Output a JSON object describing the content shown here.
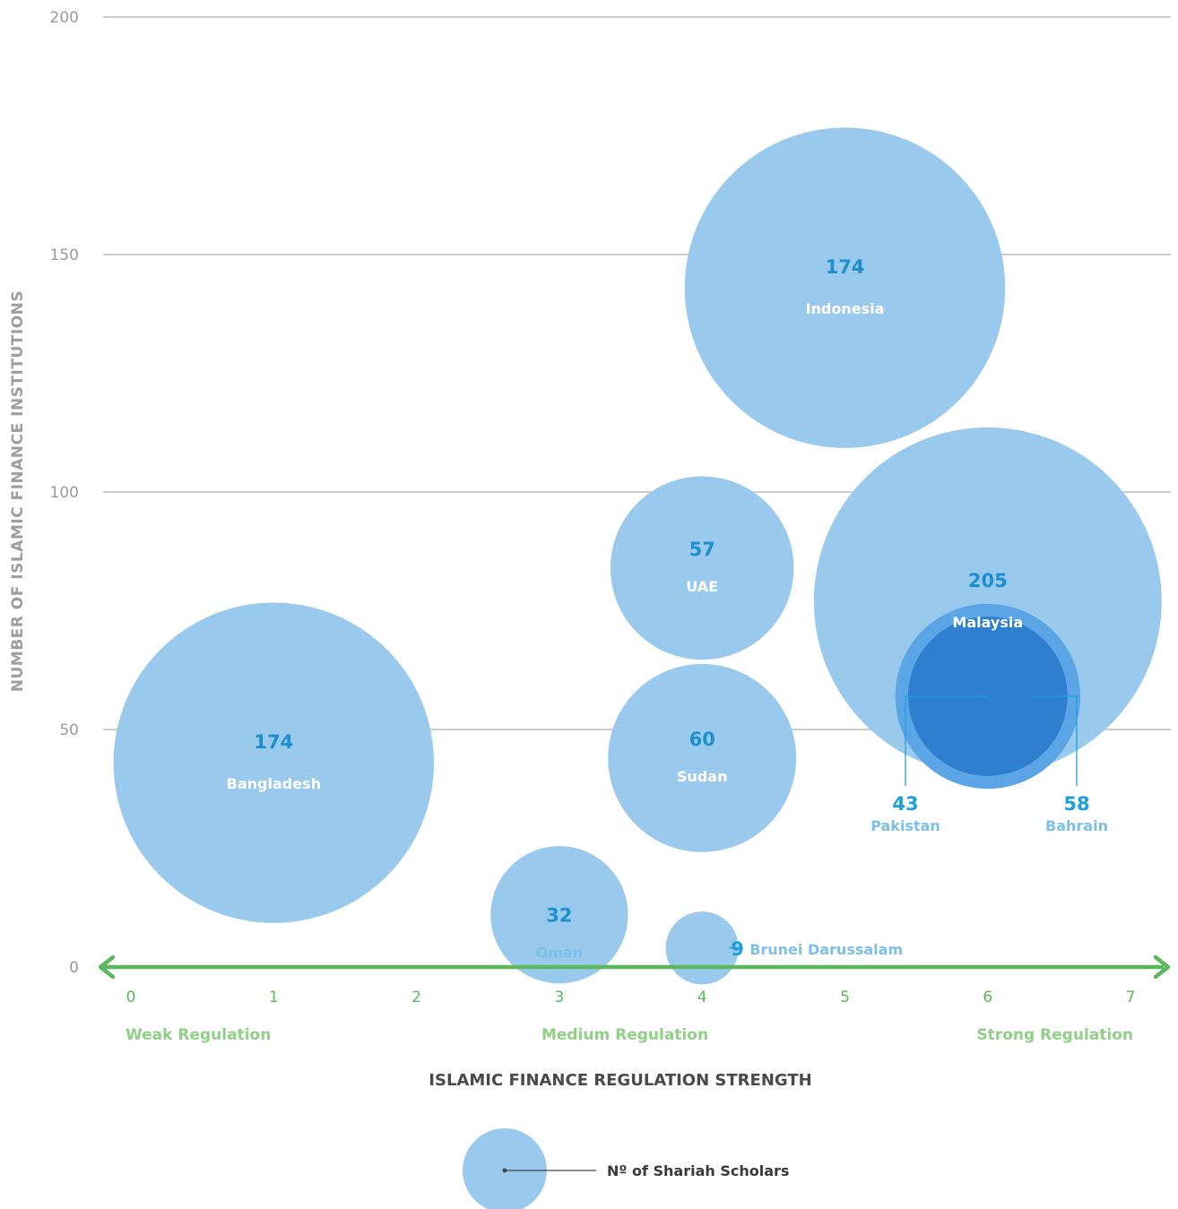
{
  "chart_data": {
    "type": "bubble",
    "xlabel": "ISLAMIC FINANCE REGULATION STRENGTH",
    "ylabel": "NUMBER OF ISLAMIC FINANCE INSTITUTIONS",
    "xlim": [
      0,
      7
    ],
    "ylim": [
      0,
      200
    ],
    "x_ticks": [
      "0",
      "1",
      "2",
      "3",
      "4",
      "5",
      "6",
      "7"
    ],
    "y_ticks": [
      "0",
      "50",
      "100",
      "150",
      "200"
    ],
    "regulation_bands": [
      "Weak Regulation",
      "Medium Regulation",
      "Strong Regulation"
    ],
    "grid": true,
    "size_legend": "Nº of Shariah Scholars",
    "points": [
      {
        "name": "Indonesia",
        "x": 5,
        "y": 143,
        "scholars": 174,
        "label": "174"
      },
      {
        "name": "Malaysia",
        "x": 6,
        "y": 77,
        "scholars": 205,
        "label": "205"
      },
      {
        "name": "UAE",
        "x": 4,
        "y": 84,
        "scholars": 57,
        "label": "57"
      },
      {
        "name": "Sudan",
        "x": 4,
        "y": 44,
        "scholars": 60,
        "label": "60"
      },
      {
        "name": "Bangladesh",
        "x": 1,
        "y": 43,
        "scholars": 174,
        "label": "174"
      },
      {
        "name": "Oman",
        "x": 3,
        "y": 11,
        "scholars": 32,
        "label": "32"
      },
      {
        "name": "Brunei Darussalam",
        "x": 4,
        "y": 4,
        "scholars": 9,
        "label": "9"
      },
      {
        "name": "Pakistan",
        "x": 6,
        "y": 57,
        "scholars": 43,
        "label": "43"
      },
      {
        "name": "Bahrain",
        "x": 6,
        "y": 57,
        "scholars": 58,
        "label": "58"
      }
    ]
  },
  "colors": {
    "bubble": "#99caed",
    "bubble_mid": "#5ba4e6",
    "bubble_dark": "#2f7fd0",
    "axis": "#5cb85c",
    "grid": "#9a9a9a"
  }
}
